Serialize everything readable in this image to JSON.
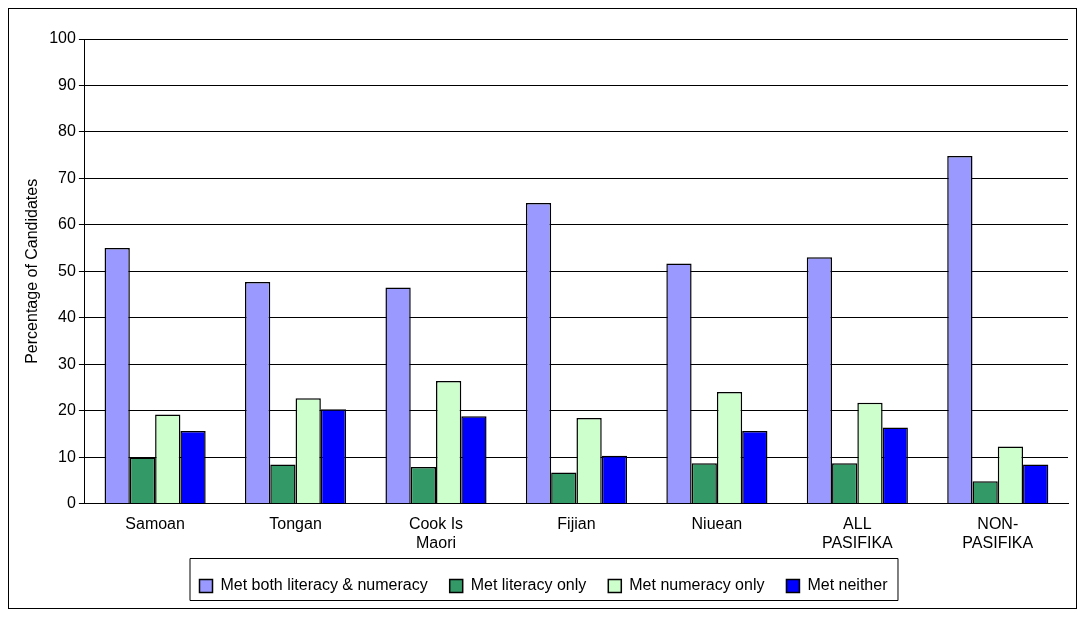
{
  "chart_data": {
    "type": "bar",
    "ylabel": "Percentage of Candidates",
    "categories": [
      "Samoan",
      "Tongan",
      "Cook Is Maori",
      "Fijian",
      "Niuean",
      "ALL PASIFIKA",
      "NON-PASIFIKA"
    ],
    "series": [
      {
        "name": "Met both literacy & numeracy",
        "color": "#9999ff",
        "values": [
          55,
          47.7,
          46.5,
          64.7,
          51.7,
          53,
          74.8
        ]
      },
      {
        "name": "Met literacy only",
        "color": "#339966",
        "values": [
          9.9,
          8.4,
          7.9,
          6.7,
          8.7,
          8.7,
          4.8
        ]
      },
      {
        "name": "Met numeracy only",
        "color": "#ccffcc",
        "values": [
          19.2,
          22.7,
          26.4,
          18.4,
          24,
          21.7,
          12.3
        ]
      },
      {
        "name": "Met neither",
        "color": "#0000ff",
        "values": [
          15.6,
          20.3,
          18.8,
          10.3,
          15.6,
          16.4,
          8.4
        ]
      }
    ],
    "ylim": [
      0,
      100
    ],
    "yticks": [
      0,
      10,
      20,
      30,
      40,
      50,
      60,
      70,
      80,
      90,
      100
    ],
    "grid": "y",
    "legend": "bottom"
  }
}
